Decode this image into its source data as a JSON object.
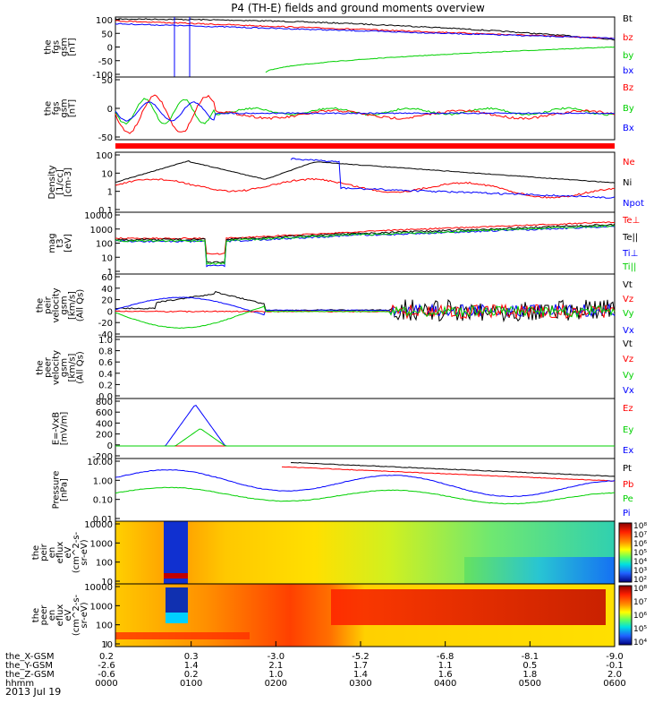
{
  "title": "P4 (TH-E) fields and ground moments overview",
  "date_label": "2013 Jul 19",
  "ephemeris": {
    "rows": [
      {
        "label": "the_X-GSM",
        "values": [
          "0.2",
          "0.3",
          "-3.0",
          "-5.2",
          "-6.8",
          "-8.1",
          "-9.0"
        ]
      },
      {
        "label": "the_Y-GSM",
        "values": [
          "-2.6",
          "1.4",
          "2.1",
          "1.7",
          "1.1",
          "0.5",
          "-0.1"
        ]
      },
      {
        "label": "the_Z-GSM",
        "values": [
          "-0.6",
          "0.2",
          "1.0",
          "1.4",
          "1.6",
          "1.8",
          "2.0"
        ]
      },
      {
        "label": "hhmm",
        "values": [
          "0000",
          "0100",
          "0200",
          "0300",
          "0400",
          "0500",
          "0600"
        ]
      }
    ]
  },
  "colors": {
    "black": "#000000",
    "red": "#ff0000",
    "green": "#00d000",
    "blue": "#0000ff"
  },
  "chart_data": [
    {
      "type": "line",
      "id": "fgs",
      "ylabel": [
        "the",
        "fgs",
        "gsm",
        "[nT]"
      ],
      "yticks": [
        "100",
        "50",
        "0",
        "-50",
        "-100"
      ],
      "ylim": [
        -100,
        100
      ],
      "legend": [
        {
          "name": "Bt",
          "color": "#000000"
        },
        {
          "name": "bz",
          "color": "#ff0000"
        },
        {
          "name": "by",
          "color": "#00d000"
        },
        {
          "name": "bx",
          "color": "#0000ff"
        }
      ]
    },
    {
      "type": "line",
      "id": "fgs2",
      "ylabel": [
        "the",
        "fgs",
        "gsm",
        "[nT]"
      ],
      "yticks": [
        "50",
        "0",
        "-50"
      ],
      "ylim": [
        -75,
        75
      ],
      "legend": [
        {
          "name": "Bz",
          "color": "#ff0000"
        },
        {
          "name": "By",
          "color": "#00d000"
        },
        {
          "name": "Bx",
          "color": "#0000ff"
        }
      ]
    },
    {
      "type": "line",
      "id": "density",
      "scale": "log",
      "ylabel": [
        "Density",
        "[1/cc]",
        "[cm-3]"
      ],
      "yticks": [
        "100",
        "10",
        "1",
        "0.1"
      ],
      "ylim": [
        0.05,
        300
      ],
      "legend": [
        {
          "name": "Ne",
          "color": "#ff0000"
        },
        {
          "name": "Ni",
          "color": "#000000"
        },
        {
          "name": "Npot",
          "color": "#0000ff"
        }
      ]
    },
    {
      "type": "line",
      "id": "temperature",
      "scale": "log",
      "ylabel": [
        "mag",
        "t3",
        "[eV]"
      ],
      "yticks": [
        "10000",
        "1000",
        "100",
        "10",
        "1"
      ],
      "ylim": [
        1,
        20000
      ],
      "legend": [
        {
          "name": "Te⊥",
          "color": "#ff0000"
        },
        {
          "name": "Te||",
          "color": "#000000"
        },
        {
          "name": "Ti⊥",
          "color": "#0000ff"
        },
        {
          "name": "Ti||",
          "color": "#00d000"
        }
      ]
    },
    {
      "type": "line",
      "id": "peir_velocity",
      "ylabel": [
        "the",
        "peir",
        "velocity",
        "gsm",
        "[km/s]",
        "(All Qs)"
      ],
      "yticks": [
        "60",
        "40",
        "20",
        "0",
        "-20",
        "-40"
      ],
      "ylim": [
        -40,
        60
      ],
      "legend": [
        {
          "name": "Vt",
          "color": "#000000"
        },
        {
          "name": "Vz",
          "color": "#ff0000"
        },
        {
          "name": "Vy",
          "color": "#00d000"
        },
        {
          "name": "Vx",
          "color": "#0000ff"
        }
      ]
    },
    {
      "type": "line",
      "id": "peer_velocity",
      "ylabel": [
        "the",
        "peer",
        "velocity",
        "gsm",
        "[km/s]",
        "(All Qs)"
      ],
      "yticks": [
        "1.0",
        "0.8",
        "0.6",
        "0.4",
        "0.2",
        "0.0"
      ],
      "ylim": [
        0,
        1
      ],
      "legend": [
        {
          "name": "Vt",
          "color": "#000000"
        },
        {
          "name": "Vz",
          "color": "#ff0000"
        },
        {
          "name": "Vy",
          "color": "#00d000"
        },
        {
          "name": "Vx",
          "color": "#0000ff"
        }
      ]
    },
    {
      "type": "line",
      "id": "efield",
      "ylabel": [
        "E=-VxB",
        "[mV/m]"
      ],
      "yticks": [
        "800",
        "600",
        "400",
        "200",
        "0",
        "-200"
      ],
      "ylim": [
        -200,
        800
      ],
      "legend": [
        {
          "name": "Ez",
          "color": "#ff0000"
        },
        {
          "name": "Ey",
          "color": "#00d000"
        },
        {
          "name": "Ex",
          "color": "#0000ff"
        }
      ]
    },
    {
      "type": "line",
      "id": "pressure",
      "scale": "log",
      "ylabel": [
        "Pressure",
        "[nPa]"
      ],
      "yticks": [
        "10.00",
        "1.00",
        "0.10",
        "0.01"
      ],
      "ylim": [
        0.01,
        30
      ],
      "legend": [
        {
          "name": "Pt",
          "color": "#000000"
        },
        {
          "name": "Pb",
          "color": "#ff0000"
        },
        {
          "name": "Pe",
          "color": "#00d000"
        },
        {
          "name": "Pi",
          "color": "#0000ff"
        }
      ]
    },
    {
      "type": "heatmap",
      "id": "peir_spectrogram",
      "ylabel": [
        "the",
        "peir",
        "en",
        "eflux",
        "eV",
        "(cm^2-s-",
        "sr-eV)"
      ],
      "yticks": [
        "10000",
        "1000",
        "100",
        "10"
      ],
      "colorbar": [
        "10⁸",
        "10⁷",
        "10⁶",
        "10⁵",
        "10⁴",
        "10³",
        "10²"
      ]
    },
    {
      "type": "heatmap",
      "id": "peer_spectrogram",
      "ylabel": [
        "the",
        "peer",
        "en",
        "eflux",
        "eV",
        "(cm^2-s-",
        "sr-eV)"
      ],
      "yticks": [
        "10000",
        "1000",
        "100",
        "10"
      ],
      "colorbar": [
        "10⁸",
        "10⁷",
        "10⁶",
        "10⁵",
        "10⁴"
      ]
    }
  ]
}
